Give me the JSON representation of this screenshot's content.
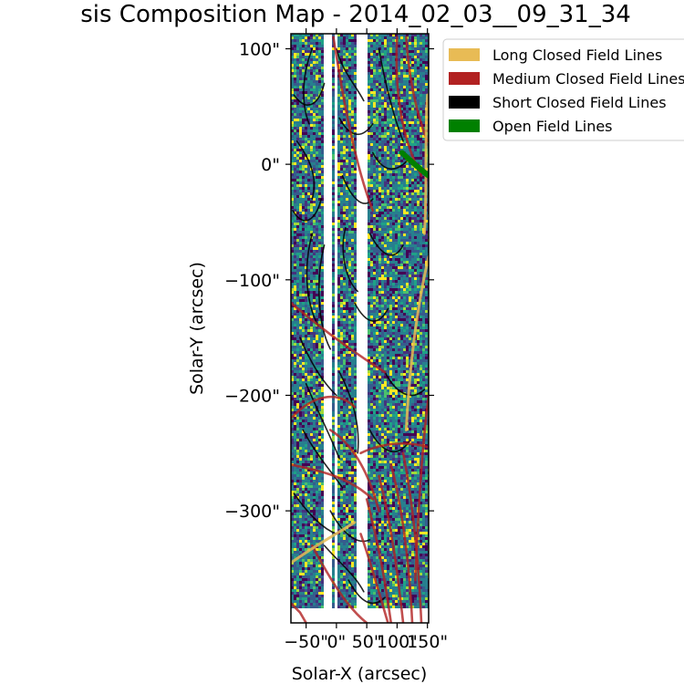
{
  "chart_data": {
    "type": "heatmap",
    "title": "sis Composition Map - 2014_02_03__09_31_34",
    "xlabel": "Solar-X (arcsec)",
    "ylabel": "Solar-Y (arcsec)",
    "xlim": [
      -75,
      152
    ],
    "ylim": [
      -397,
      113
    ],
    "x_ticks": [
      {
        "value": -50,
        "label": "−50\""
      },
      {
        "value": 0,
        "label": "0\""
      },
      {
        "value": 50,
        "label": "50\""
      },
      {
        "value": 100,
        "label": "100\""
      },
      {
        "value": 150,
        "label": "150\""
      }
    ],
    "y_ticks": [
      {
        "value": 100,
        "label": "100\""
      },
      {
        "value": 0,
        "label": "0\""
      },
      {
        "value": -100,
        "label": "−100\""
      },
      {
        "value": -200,
        "label": "−200\""
      },
      {
        "value": -300,
        "label": "−300\""
      }
    ],
    "colormap": "viridis",
    "data_gaps_x": [
      [
        -19,
        -6
      ],
      [
        -2,
        3
      ],
      [
        33,
        53
      ]
    ],
    "legend": {
      "placement": "upper-right",
      "entries": [
        {
          "label": "Long Closed Field Lines",
          "color": "#e8bb55"
        },
        {
          "label": "Medium Closed Field Lines",
          "color": "#b22222"
        },
        {
          "label": "Short Closed Field Lines",
          "color": "#000000"
        },
        {
          "label": "Open Field Lines",
          "color": "#008000"
        }
      ]
    },
    "field_lines": [
      {
        "type": "short",
        "points": [
          [
            -40,
            100
          ],
          [
            -55,
            80
          ],
          [
            -60,
            55
          ],
          [
            -45,
            35
          ]
        ]
      },
      {
        "type": "short",
        "points": [
          [
            -70,
            60
          ],
          [
            -50,
            45
          ],
          [
            -30,
            50
          ],
          [
            -20,
            70
          ]
        ]
      },
      {
        "type": "short",
        "points": [
          [
            -65,
            20
          ],
          [
            -45,
            5
          ],
          [
            -30,
            -10
          ],
          [
            -40,
            -30
          ]
        ]
      },
      {
        "type": "short",
        "points": [
          [
            -72,
            -40
          ],
          [
            -55,
            -55
          ],
          [
            -35,
            -50
          ],
          [
            -25,
            -30
          ]
        ]
      },
      {
        "type": "short",
        "points": [
          [
            -40,
            -60
          ],
          [
            -55,
            -90
          ],
          [
            -50,
            -120
          ],
          [
            -30,
            -140
          ]
        ]
      },
      {
        "type": "short",
        "points": [
          [
            -20,
            -70
          ],
          [
            -35,
            -100
          ],
          [
            -30,
            -140
          ],
          [
            -10,
            -160
          ]
        ]
      },
      {
        "type": "short",
        "points": [
          [
            -60,
            -150
          ],
          [
            -40,
            -175
          ],
          [
            -20,
            -190
          ],
          [
            0,
            -200
          ]
        ]
      },
      {
        "type": "short",
        "points": [
          [
            -50,
            -190
          ],
          [
            -30,
            -215
          ],
          [
            -10,
            -235
          ],
          [
            5,
            -255
          ]
        ]
      },
      {
        "type": "short",
        "points": [
          [
            -55,
            -230
          ],
          [
            -35,
            -250
          ],
          [
            -10,
            -265
          ],
          [
            10,
            -280
          ]
        ]
      },
      {
        "type": "short",
        "points": [
          [
            -70,
            -285
          ],
          [
            -50,
            -300
          ],
          [
            -25,
            -315
          ],
          [
            0,
            -320
          ]
        ]
      },
      {
        "type": "short",
        "points": [
          [
            -20,
            -330
          ],
          [
            5,
            -345
          ],
          [
            30,
            -355
          ],
          [
            45,
            -370
          ]
        ]
      },
      {
        "type": "short",
        "points": [
          [
            0,
            100
          ],
          [
            10,
            80
          ],
          [
            30,
            70
          ],
          [
            45,
            55
          ]
        ]
      },
      {
        "type": "short",
        "points": [
          [
            5,
            40
          ],
          [
            20,
            25
          ],
          [
            40,
            20
          ],
          [
            60,
            35
          ]
        ]
      },
      {
        "type": "short",
        "points": [
          [
            10,
            -10
          ],
          [
            25,
            -30
          ],
          [
            45,
            -40
          ],
          [
            60,
            -30
          ]
        ]
      },
      {
        "type": "short",
        "points": [
          [
            15,
            -55
          ],
          [
            5,
            -75
          ],
          [
            15,
            -100
          ],
          [
            35,
            -110
          ]
        ]
      },
      {
        "type": "short",
        "points": [
          [
            30,
            -120
          ],
          [
            50,
            -140
          ],
          [
            70,
            -140
          ],
          [
            85,
            -125
          ]
        ]
      },
      {
        "type": "short",
        "points": [
          [
            55,
            -60
          ],
          [
            75,
            -80
          ],
          [
            95,
            -85
          ],
          [
            110,
            -70
          ]
        ]
      },
      {
        "type": "short",
        "points": [
          [
            70,
            100
          ],
          [
            80,
            70
          ],
          [
            95,
            40
          ],
          [
            110,
            20
          ]
        ]
      },
      {
        "type": "short",
        "points": [
          [
            60,
            10
          ],
          [
            75,
            -5
          ],
          [
            95,
            -10
          ],
          [
            120,
            5
          ]
        ]
      },
      {
        "type": "short",
        "points": [
          [
            80,
            -180
          ],
          [
            100,
            -200
          ],
          [
            125,
            -205
          ],
          [
            145,
            -195
          ]
        ]
      },
      {
        "type": "short",
        "points": [
          [
            55,
            -230
          ],
          [
            75,
            -250
          ],
          [
            100,
            -255
          ],
          [
            120,
            -240
          ]
        ]
      },
      {
        "type": "short",
        "points": [
          [
            5,
            -180
          ],
          [
            25,
            -200
          ],
          [
            40,
            -225
          ],
          [
            35,
            -250
          ]
        ]
      },
      {
        "type": "short",
        "points": [
          [
            -10,
            -300
          ],
          [
            10,
            -320
          ],
          [
            35,
            -330
          ],
          [
            55,
            -325
          ]
        ]
      },
      {
        "type": "short",
        "points": [
          [
            20,
            -360
          ],
          [
            40,
            -380
          ],
          [
            60,
            -385
          ],
          [
            80,
            -375
          ]
        ]
      },
      {
        "type": "medium",
        "points": [
          [
            -5,
            110
          ],
          [
            10,
            60
          ],
          [
            30,
            0
          ],
          [
            60,
            -40
          ]
        ]
      },
      {
        "type": "medium",
        "points": [
          [
            100,
            110
          ],
          [
            95,
            60
          ],
          [
            110,
            20
          ],
          [
            140,
            -10
          ]
        ]
      },
      {
        "type": "medium",
        "points": [
          [
            115,
            110
          ],
          [
            120,
            70
          ],
          [
            135,
            40
          ],
          [
            150,
            20
          ]
        ]
      },
      {
        "type": "medium",
        "points": [
          [
            -75,
            -220
          ],
          [
            -40,
            -200
          ],
          [
            0,
            -195
          ],
          [
            30,
            -210
          ]
        ]
      },
      {
        "type": "medium",
        "points": [
          [
            -75,
            -260
          ],
          [
            -30,
            -265
          ],
          [
            20,
            -270
          ],
          [
            60,
            -290
          ]
        ]
      },
      {
        "type": "medium",
        "points": [
          [
            40,
            -250
          ],
          [
            80,
            -240
          ],
          [
            120,
            -240
          ],
          [
            152,
            -245
          ]
        ]
      },
      {
        "type": "medium",
        "points": [
          [
            50,
            -290
          ],
          [
            70,
            -330
          ],
          [
            80,
            -360
          ],
          [
            90,
            -397
          ]
        ]
      },
      {
        "type": "medium",
        "points": [
          [
            70,
            -270
          ],
          [
            90,
            -310
          ],
          [
            100,
            -350
          ],
          [
            110,
            -397
          ]
        ]
      },
      {
        "type": "medium",
        "points": [
          [
            90,
            -260
          ],
          [
            110,
            -300
          ],
          [
            120,
            -345
          ],
          [
            125,
            -397
          ]
        ]
      },
      {
        "type": "medium",
        "points": [
          [
            110,
            -250
          ],
          [
            125,
            -290
          ],
          [
            135,
            -340
          ],
          [
            140,
            -397
          ]
        ]
      },
      {
        "type": "medium",
        "points": [
          [
            -40,
            -330
          ],
          [
            -10,
            -360
          ],
          [
            20,
            -385
          ],
          [
            50,
            -397
          ]
        ]
      },
      {
        "type": "medium",
        "points": [
          [
            -75,
            -380
          ],
          [
            -60,
            -388
          ],
          [
            -50,
            -397
          ]
        ]
      },
      {
        "type": "medium",
        "points": [
          [
            -10,
            -230
          ],
          [
            20,
            -240
          ],
          [
            50,
            -260
          ],
          [
            70,
            -300
          ]
        ]
      },
      {
        "type": "medium",
        "points": [
          [
            40,
            -320
          ],
          [
            60,
            -350
          ],
          [
            75,
            -380
          ],
          [
            85,
            -397
          ]
        ]
      },
      {
        "type": "medium",
        "points": [
          [
            -75,
            -120
          ],
          [
            -30,
            -140
          ],
          [
            20,
            -160
          ],
          [
            80,
            -180
          ]
        ]
      },
      {
        "type": "medium",
        "points": [
          [
            152,
            -200
          ],
          [
            140,
            -250
          ],
          [
            135,
            -300
          ],
          [
            130,
            -360
          ]
        ]
      },
      {
        "type": "long",
        "points": [
          [
            -75,
            -345
          ],
          [
            -35,
            -330
          ],
          [
            0,
            -320
          ],
          [
            30,
            -310
          ]
        ]
      },
      {
        "type": "long",
        "points": [
          [
            150,
            60
          ],
          [
            145,
            20
          ],
          [
            150,
            -20
          ],
          [
            145,
            -60
          ]
        ]
      },
      {
        "type": "long",
        "points": [
          [
            152,
            -80
          ],
          [
            130,
            -130
          ],
          [
            120,
            -180
          ],
          [
            115,
            -230
          ]
        ]
      },
      {
        "type": "open",
        "points": [
          [
            108,
            10
          ],
          [
            118,
            5
          ],
          [
            128,
            0
          ],
          [
            152,
            -10
          ]
        ]
      }
    ]
  }
}
